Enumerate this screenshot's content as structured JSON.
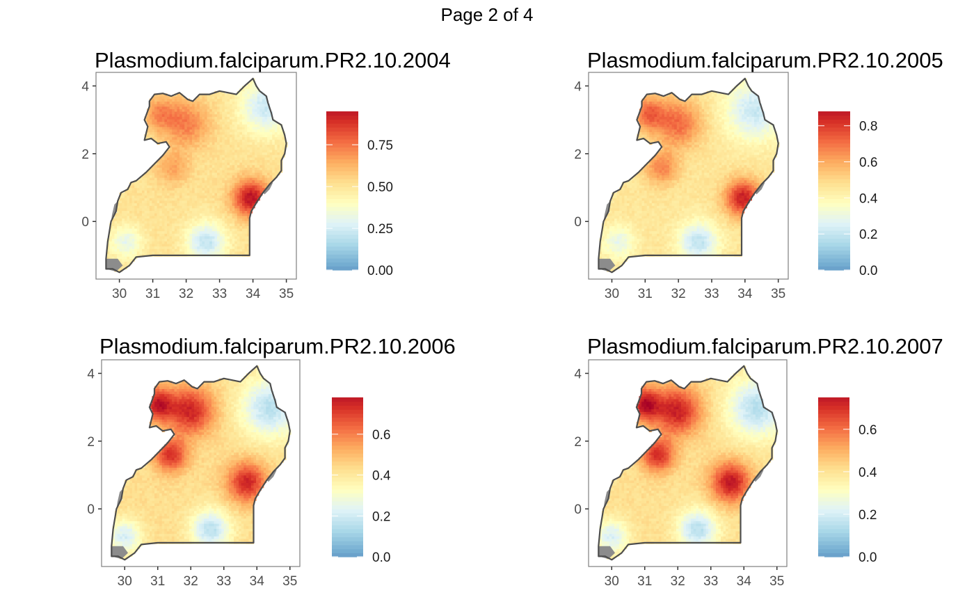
{
  "page": {
    "title": "Page 2 of 4"
  },
  "colors": {
    "scale": [
      "#313695",
      "#4575b4",
      "#74add1",
      "#abd9e9",
      "#e0f3f8",
      "#ffffbf",
      "#fee090",
      "#fdae61",
      "#f46d43",
      "#d73027",
      "#a50026"
    ],
    "na": "#8c8c8c",
    "outline": "#4d4d4d",
    "panel_border": "#7f7f7f"
  },
  "chart_data": [
    {
      "type": "heatmap",
      "title": "Plasmodium.falciparum.PR2.10.2004",
      "xlabel": "",
      "ylabel": "",
      "xlim": [
        29.3,
        35.3
      ],
      "ylim": [
        -1.7,
        4.4
      ],
      "xticks": [
        "30",
        "31",
        "32",
        "33",
        "34",
        "35"
      ],
      "yticks": [
        "0",
        "2",
        "4"
      ],
      "legend": {
        "position": "right",
        "range": [
          0,
          0.95
        ],
        "ticks": [
          "0.00",
          "0.25",
          "0.50",
          "0.75"
        ],
        "tick_values": [
          0,
          0.25,
          0.5,
          0.75
        ]
      },
      "hotspots": [
        {
          "lon": 33.95,
          "lat": 0.7,
          "value": 0.95,
          "spread": 0.55
        },
        {
          "lon": 32.0,
          "lat": 2.9,
          "value": 0.72,
          "spread": 0.7
        },
        {
          "lon": 31.2,
          "lat": 3.2,
          "value": 0.68,
          "spread": 0.5
        },
        {
          "lon": 31.6,
          "lat": 1.6,
          "value": 0.65,
          "spread": 0.5
        },
        {
          "lon": 34.4,
          "lat": 3.4,
          "value": 0.22,
          "spread": 0.8
        },
        {
          "lon": 32.6,
          "lat": -0.6,
          "value": 0.2,
          "spread": 0.6
        },
        {
          "lon": 30.2,
          "lat": -0.6,
          "value": 0.3,
          "spread": 0.5
        }
      ],
      "base_value": 0.5
    },
    {
      "type": "heatmap",
      "title": "Plasmodium.falciparum.PR2.10.2005",
      "xlabel": "",
      "ylabel": "",
      "xlim": [
        29.3,
        35.3
      ],
      "ylim": [
        -1.7,
        4.4
      ],
      "xticks": [
        "30",
        "31",
        "32",
        "33",
        "34",
        "35"
      ],
      "yticks": [
        "0",
        "2",
        "4"
      ],
      "legend": {
        "position": "right",
        "range": [
          0,
          0.88
        ],
        "ticks": [
          "0.0",
          "0.2",
          "0.4",
          "0.6",
          "0.8"
        ],
        "tick_values": [
          0,
          0.2,
          0.4,
          0.6,
          0.8
        ]
      },
      "hotspots": [
        {
          "lon": 33.95,
          "lat": 0.7,
          "value": 0.85,
          "spread": 0.55
        },
        {
          "lon": 32.0,
          "lat": 2.9,
          "value": 0.7,
          "spread": 0.7
        },
        {
          "lon": 31.1,
          "lat": 3.2,
          "value": 0.7,
          "spread": 0.5
        },
        {
          "lon": 31.5,
          "lat": 1.6,
          "value": 0.66,
          "spread": 0.5
        },
        {
          "lon": 34.3,
          "lat": 3.3,
          "value": 0.2,
          "spread": 0.9
        },
        {
          "lon": 32.6,
          "lat": -0.6,
          "value": 0.18,
          "spread": 0.6
        },
        {
          "lon": 30.2,
          "lat": -0.6,
          "value": 0.28,
          "spread": 0.5
        }
      ],
      "base_value": 0.45
    },
    {
      "type": "heatmap",
      "title": "Plasmodium.falciparum.PR2.10.2006",
      "xlabel": "",
      "ylabel": "",
      "xlim": [
        29.3,
        35.3
      ],
      "ylim": [
        -1.7,
        4.4
      ],
      "xticks": [
        "30",
        "31",
        "32",
        "33",
        "34",
        "35"
      ],
      "yticks": [
        "0",
        "2",
        "4"
      ],
      "legend": {
        "position": "right",
        "range": [
          0,
          0.78
        ],
        "ticks": [
          "0.0",
          "0.2",
          "0.4",
          "0.6"
        ],
        "tick_values": [
          0,
          0.2,
          0.4,
          0.6
        ]
      },
      "hotspots": [
        {
          "lon": 33.7,
          "lat": 0.8,
          "value": 0.74,
          "spread": 0.6
        },
        {
          "lon": 32.0,
          "lat": 2.9,
          "value": 0.74,
          "spread": 0.7
        },
        {
          "lon": 31.0,
          "lat": 3.1,
          "value": 0.75,
          "spread": 0.5
        },
        {
          "lon": 31.4,
          "lat": 1.6,
          "value": 0.72,
          "spread": 0.5
        },
        {
          "lon": 34.4,
          "lat": 3.0,
          "value": 0.15,
          "spread": 0.9
        },
        {
          "lon": 32.6,
          "lat": -0.6,
          "value": 0.15,
          "spread": 0.6
        },
        {
          "lon": 30.0,
          "lat": -0.8,
          "value": 0.2,
          "spread": 0.5
        }
      ],
      "base_value": 0.42
    },
    {
      "type": "heatmap",
      "title": "Plasmodium.falciparum.PR2.10.2007",
      "xlabel": "",
      "ylabel": "",
      "xlim": [
        29.3,
        35.3
      ],
      "ylim": [
        -1.7,
        4.4
      ],
      "xticks": [
        "30",
        "31",
        "32",
        "33",
        "34",
        "35"
      ],
      "yticks": [
        "0",
        "2",
        "4"
      ],
      "legend": {
        "position": "right",
        "range": [
          0,
          0.75
        ],
        "ticks": [
          "0.0",
          "0.2",
          "0.4",
          "0.6"
        ],
        "tick_values": [
          0,
          0.2,
          0.4,
          0.6
        ]
      },
      "hotspots": [
        {
          "lon": 33.6,
          "lat": 0.8,
          "value": 0.74,
          "spread": 0.6
        },
        {
          "lon": 32.0,
          "lat": 2.9,
          "value": 0.72,
          "spread": 0.7
        },
        {
          "lon": 31.0,
          "lat": 3.1,
          "value": 0.74,
          "spread": 0.5
        },
        {
          "lon": 31.4,
          "lat": 1.6,
          "value": 0.7,
          "spread": 0.5
        },
        {
          "lon": 34.4,
          "lat": 3.0,
          "value": 0.14,
          "spread": 0.9
        },
        {
          "lon": 32.6,
          "lat": -0.6,
          "value": 0.14,
          "spread": 0.6
        },
        {
          "lon": 30.0,
          "lat": -0.8,
          "value": 0.2,
          "spread": 0.5
        }
      ],
      "base_value": 0.4
    }
  ],
  "boundary": {
    "outline": [
      [
        29.6,
        -1.4
      ],
      [
        29.6,
        -1.1
      ],
      [
        29.65,
        -0.6
      ],
      [
        29.75,
        0.0
      ],
      [
        29.9,
        0.3
      ],
      [
        29.95,
        0.6
      ],
      [
        30.05,
        0.85
      ],
      [
        30.25,
        0.95
      ],
      [
        30.35,
        1.15
      ],
      [
        30.5,
        1.2
      ],
      [
        30.8,
        1.45
      ],
      [
        31.0,
        1.65
      ],
      [
        31.3,
        1.95
      ],
      [
        31.5,
        2.2
      ],
      [
        31.4,
        2.35
      ],
      [
        31.15,
        2.3
      ],
      [
        30.95,
        2.45
      ],
      [
        30.75,
        2.4
      ],
      [
        30.85,
        2.8
      ],
      [
        30.75,
        3.0
      ],
      [
        30.9,
        3.4
      ],
      [
        30.9,
        3.55
      ],
      [
        31.05,
        3.75
      ],
      [
        31.3,
        3.78
      ],
      [
        31.55,
        3.7
      ],
      [
        31.8,
        3.8
      ],
      [
        32.05,
        3.6
      ],
      [
        32.2,
        3.55
      ],
      [
        32.4,
        3.75
      ],
      [
        32.7,
        3.75
      ],
      [
        33.0,
        3.85
      ],
      [
        33.5,
        3.75
      ],
      [
        33.75,
        4.0
      ],
      [
        34.0,
        4.22
      ],
      [
        34.1,
        4.0
      ],
      [
        34.2,
        3.85
      ],
      [
        34.4,
        3.7
      ],
      [
        34.45,
        3.5
      ],
      [
        34.55,
        3.2
      ],
      [
        34.6,
        3.0
      ],
      [
        34.85,
        2.85
      ],
      [
        34.95,
        2.55
      ],
      [
        35.0,
        2.3
      ],
      [
        34.95,
        2.0
      ],
      [
        34.85,
        1.8
      ],
      [
        34.85,
        1.5
      ],
      [
        34.7,
        1.3
      ],
      [
        34.5,
        1.1
      ],
      [
        34.3,
        0.85
      ],
      [
        34.1,
        0.55
      ],
      [
        33.95,
        0.3
      ],
      [
        33.9,
        0.1
      ],
      [
        33.9,
        -0.2
      ],
      [
        33.9,
        -1.0
      ],
      [
        31.0,
        -1.0
      ],
      [
        30.5,
        -1.05
      ],
      [
        30.3,
        -1.3
      ],
      [
        30.0,
        -1.5
      ],
      [
        29.8,
        -1.4
      ],
      [
        29.6,
        -1.4
      ]
    ],
    "lake_patches": [
      [
        [
          29.6,
          -1.4
        ],
        [
          29.6,
          -1.1
        ],
        [
          29.95,
          -1.1
        ],
        [
          30.1,
          -1.3
        ],
        [
          29.9,
          -1.48
        ]
      ],
      [
        [
          29.75,
          0.0
        ],
        [
          29.9,
          0.3
        ],
        [
          29.95,
          0.6
        ],
        [
          29.85,
          0.5
        ],
        [
          29.78,
          0.2
        ]
      ],
      [
        [
          34.3,
          0.85
        ],
        [
          34.5,
          1.1
        ],
        [
          34.6,
          1.15
        ],
        [
          34.5,
          0.95
        ],
        [
          34.35,
          0.8
        ]
      ]
    ]
  }
}
